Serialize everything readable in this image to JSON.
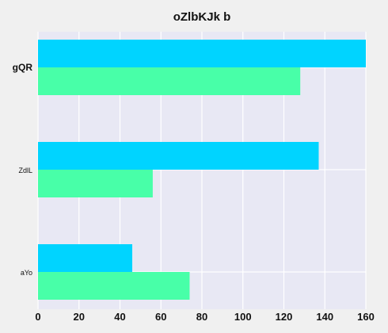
{
  "chart_data": {
    "type": "bar",
    "orientation": "horizontal",
    "title": "oZlbKJk b",
    "xlabel": "",
    "ylabel": "",
    "categories": [
      "gQR",
      "ZdlL",
      "aYo"
    ],
    "series": [
      {
        "values": [
          160,
          137,
          46
        ],
        "color": "#00d4ff"
      },
      {
        "values": [
          128,
          56,
          74
        ],
        "color": "#48ffa8"
      }
    ],
    "xlim": [
      0,
      160
    ],
    "xticks": [
      0,
      20,
      40,
      60,
      80,
      100,
      120,
      140,
      160
    ],
    "grid": true,
    "legend": "none",
    "background": "#e8e8f4"
  }
}
